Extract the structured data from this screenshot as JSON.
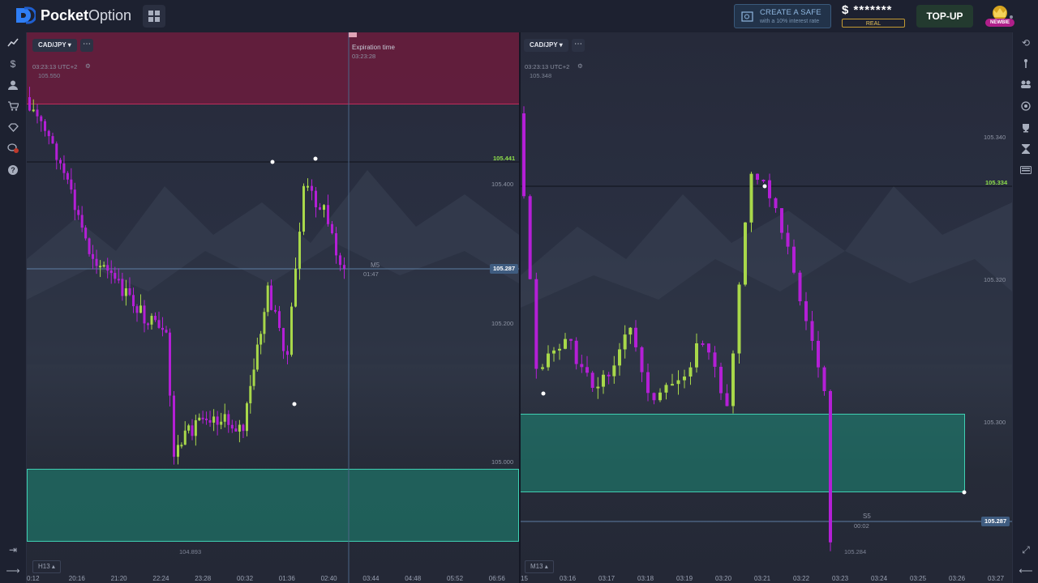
{
  "brand": {
    "name_bold": "Pocket",
    "name_light": "Option"
  },
  "safe_promo": {
    "title": "CREATE A SAFE",
    "subtitle": "with a 10% interest rate"
  },
  "balance": {
    "currency": "$",
    "masked": "*******",
    "account_type": "REAL"
  },
  "topup_label": "TOP-UP",
  "badge_label": "NEWBIE",
  "colors": {
    "bull": "#a8d84a",
    "bear": "#b41fd6",
    "sell_zone": "#92143e",
    "buy_zone": "#1b8a76",
    "accent": "#3f5c80"
  },
  "left_chart": {
    "pair": "CAD/JPY",
    "clock": "03:23:13 UTC+2",
    "top_price": "105.550",
    "expiration_label": "Expiration time",
    "expiration_time": "03:23:28",
    "y_ticks": [
      "105.400",
      "105.200",
      "105.000"
    ],
    "line_price": "105.441",
    "current_price": "105.287",
    "timer_tf": "M5",
    "timer_value": "01:47",
    "bottom_price": "104.893",
    "timeframe": "H13",
    "x_ticks": [
      "0:12",
      "20:16",
      "21:20",
      "22:24",
      "23:28",
      "00:32",
      "01:36",
      "02:40",
      "03:44",
      "04:48",
      "05:52",
      "06:56"
    ]
  },
  "right_chart": {
    "pair": "CAD/JPY",
    "clock": "03:23:13 UTC+2",
    "top_price": "105.348",
    "y_ticks": [
      "105.340",
      "105.320",
      "105.300"
    ],
    "line_price": "105.334",
    "current_price": "105.287",
    "timer_tf": "S5",
    "timer_value": "00:02",
    "bottom_price": "105.284",
    "timeframe": "M13",
    "x_ticks": [
      "15",
      "03:16",
      "03:17",
      "03:18",
      "03:19",
      "03:20",
      "03:21",
      "03:22",
      "03:23",
      "03:24",
      "03:25",
      "03:26",
      "03:27"
    ]
  },
  "left_rail_icons": [
    "chart-icon",
    "dollar-icon",
    "user-icon",
    "cart-icon",
    "diamond-icon",
    "chat-icon",
    "help-icon",
    "logout-icon",
    "expand-icon"
  ],
  "right_rail_icons": [
    "history-icon",
    "signals-icon",
    "social-icon",
    "target-icon",
    "trophy-icon",
    "hourglass-icon",
    "keyboard-icon",
    "fullscreen-icon",
    "collapse-icon"
  ],
  "chat_badge": "1"
}
